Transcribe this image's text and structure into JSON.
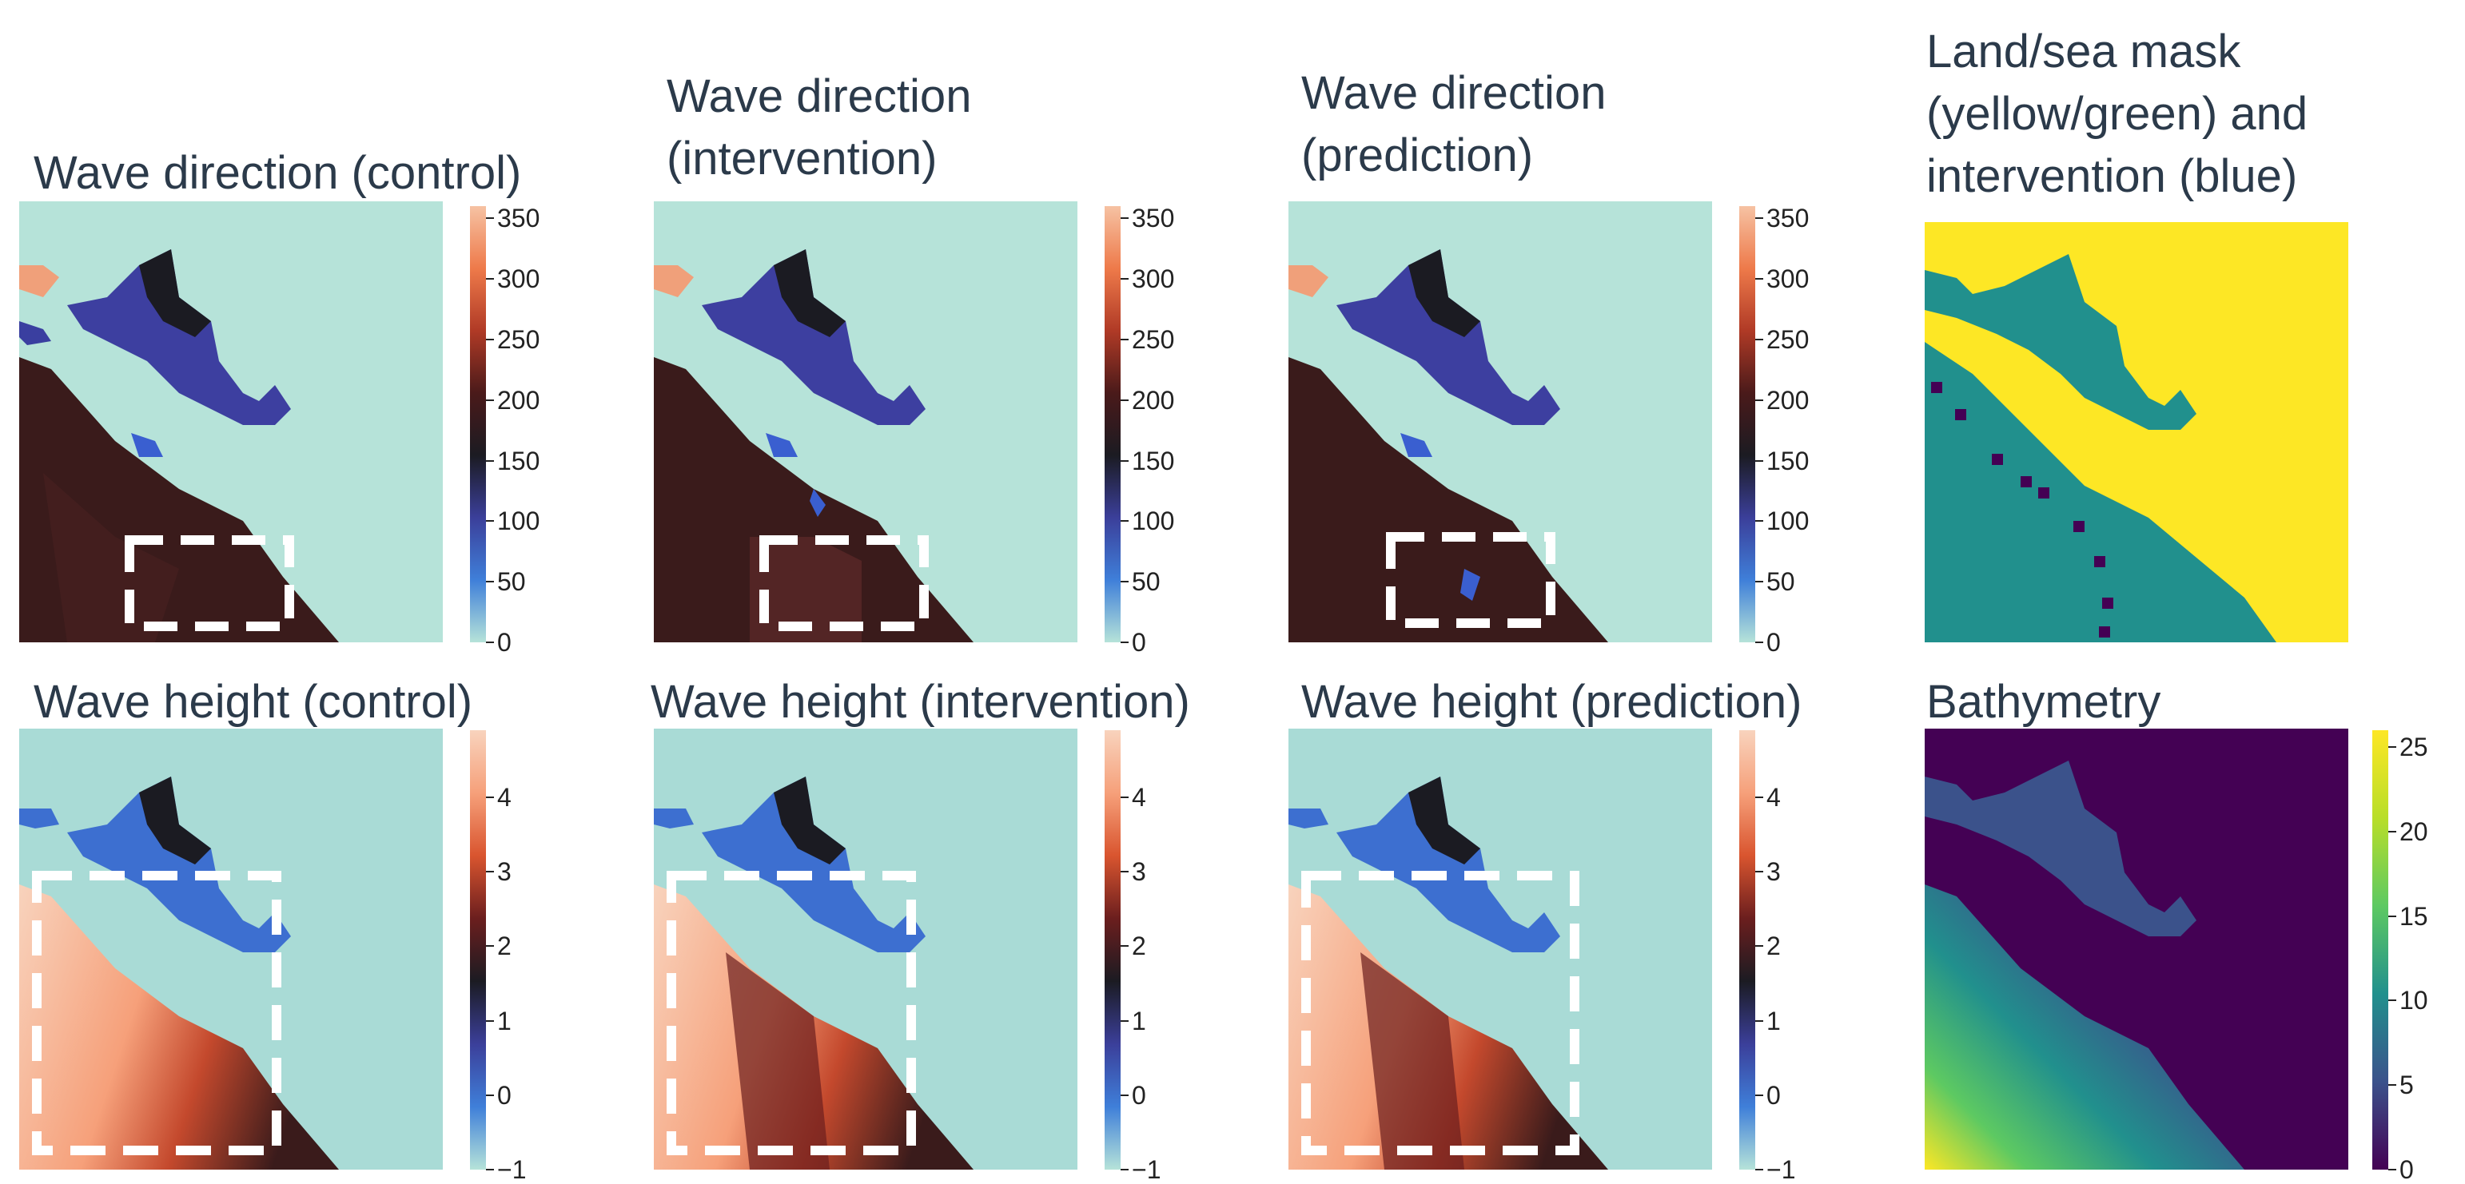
{
  "panels": [
    {
      "key": "dir_control",
      "title": "Wave direction (control)",
      "type": "heatmap"
    },
    {
      "key": "dir_intervention",
      "title": "Wave direction\n(intervention)",
      "type": "heatmap"
    },
    {
      "key": "dir_prediction",
      "title": "Wave direction\n(prediction)",
      "type": "heatmap"
    },
    {
      "key": "mask",
      "title": "Land/sea mask\n(yellow/green) and\nintervention (blue)",
      "type": "heatmap"
    },
    {
      "key": "height_control",
      "title": "Wave height (control)",
      "type": "heatmap"
    },
    {
      "key": "height_intervention",
      "title": "Wave height (intervention)",
      "type": "heatmap"
    },
    {
      "key": "height_prediction",
      "title": "Wave height (prediction)",
      "type": "heatmap"
    },
    {
      "key": "bathymetry",
      "title": "Bathymetry",
      "type": "heatmap"
    }
  ],
  "colorbars": {
    "direction": {
      "ticks": [
        "0",
        "50",
        "100",
        "150",
        "200",
        "250",
        "300",
        "350"
      ],
      "range": [
        0,
        360
      ],
      "colors": [
        "#b6e3d9",
        "#3f7fd9",
        "#3b3f9a",
        "#1b1b22",
        "#4a1a1a",
        "#b03a26",
        "#ee7a4a",
        "#f6c2a3"
      ]
    },
    "height": {
      "ticks": [
        "−1",
        "0",
        "1",
        "2",
        "3",
        "4"
      ],
      "range": [
        -1,
        4.9
      ],
      "colors": [
        "#b6e3d9",
        "#3f7fd9",
        "#3b3f9a",
        "#1b1b22",
        "#6b1e1e",
        "#d9552f",
        "#f6a07a",
        "#f8d3bd"
      ]
    },
    "bathymetry": {
      "ticks": [
        "0",
        "5",
        "10",
        "15",
        "20",
        "25"
      ],
      "range": [
        0,
        26
      ],
      "colors": [
        "#440154",
        "#3b528b",
        "#21908d",
        "#5dc962",
        "#b8de29",
        "#fde725"
      ]
    }
  },
  "chart_data": {
    "type": "heatmap",
    "panels": [
      "Wave direction (control)",
      "Wave direction (intervention)",
      "Wave direction (prediction)",
      "Land/sea mask (yellow/green) and intervention (blue)",
      "Wave height (control)",
      "Wave height (intervention)",
      "Wave height (prediction)",
      "Bathymetry"
    ],
    "colorbar_ticks": {
      "wave_direction": [
        0,
        50,
        100,
        150,
        200,
        250,
        300,
        350
      ],
      "wave_height": [
        -1,
        0,
        1,
        2,
        3,
        4
      ],
      "bathymetry": [
        0,
        5,
        10,
        15,
        20,
        25
      ]
    },
    "colorbar_ranges": {
      "wave_direction": [
        0,
        360
      ],
      "wave_height": [
        -1,
        4.9
      ],
      "bathymetry": [
        0,
        26
      ]
    },
    "annotations": "white dashed rectangles mark the intervention region in wave direction and wave height panels"
  }
}
